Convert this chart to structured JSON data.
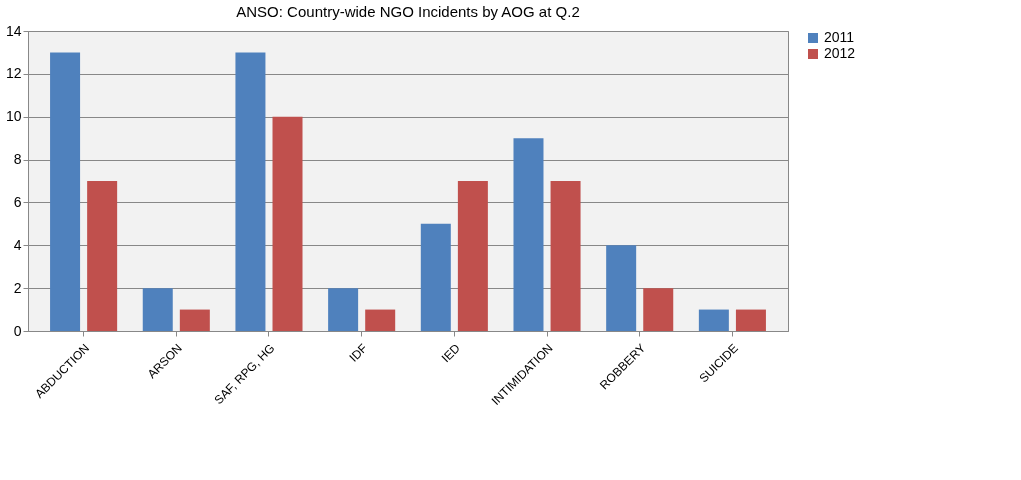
{
  "chart_data": {
    "type": "bar",
    "title": "ANSO: Country-wide NGO Incidents by AOG at Q.2",
    "categories": [
      "ABDUCTION",
      "ARSON",
      "SAF, RPG, HG",
      "IDF",
      "IED",
      "INTIMIDATION",
      "ROBBERY",
      "SUICIDE"
    ],
    "series": [
      {
        "name": "2011",
        "color": "#4f81bd",
        "values": [
          13,
          2,
          13,
          2,
          5,
          9,
          4,
          1
        ]
      },
      {
        "name": "2012",
        "color": "#c0504d",
        "values": [
          7,
          1,
          10,
          1,
          7,
          7,
          2,
          1
        ]
      }
    ],
    "ylim": [
      0,
      14
    ],
    "yticks": [
      0,
      2,
      4,
      6,
      8,
      10,
      12,
      14
    ],
    "grid": "y",
    "legend": "right"
  }
}
